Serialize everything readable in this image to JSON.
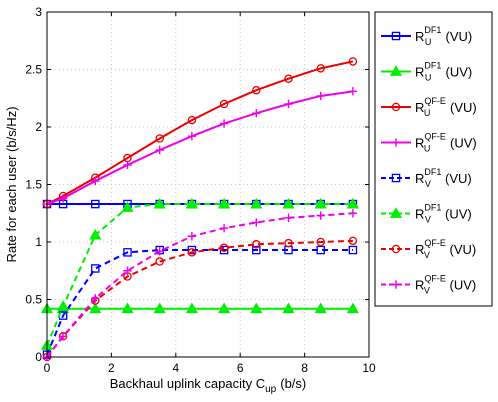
{
  "chart_data": {
    "type": "line",
    "xlabel": "Backhaul uplink capacity C",
    "xlabel_sub": "up",
    "xlabel_unit": "(b/s)",
    "ylabel": "Rate for each user (b/s/Hz)",
    "xlim": [
      0,
      10
    ],
    "ylim": [
      0,
      3
    ],
    "x_ticks": [
      "0",
      "2",
      "4",
      "6",
      "8",
      "10"
    ],
    "y_ticks": [
      "0",
      "0.5",
      "1",
      "1.5",
      "2",
      "2.5",
      "3"
    ],
    "grid": true,
    "legend_position": "right",
    "x": [
      0,
      0.5,
      1.5,
      2.5,
      3.5,
      4.5,
      5.5,
      6.5,
      7.5,
      8.5,
      9.5
    ],
    "series": [
      {
        "name": "R_U^DF1 (VU)",
        "label_base": "R",
        "label_sub": "U",
        "label_sup": "DF1",
        "label_tail": "(VU)",
        "color": "#0000ff",
        "dash": "solid",
        "marker": "square",
        "values": [
          1.33,
          1.33,
          1.33,
          1.33,
          1.33,
          1.33,
          1.33,
          1.33,
          1.33,
          1.33,
          1.33
        ]
      },
      {
        "name": "R_U^DF1 (UV)",
        "label_base": "R",
        "label_sub": "U",
        "label_sup": "DF1",
        "label_tail": "(UV)",
        "color": "#00ee00",
        "dash": "solid",
        "marker": "triangle",
        "values": [
          0.42,
          0.42,
          0.42,
          0.42,
          0.42,
          0.42,
          0.42,
          0.42,
          0.42,
          0.42,
          0.42
        ]
      },
      {
        "name": "R_U^QF-E (VU)",
        "label_base": "R",
        "label_sub": "U",
        "label_sup": "QF-E",
        "label_tail": "(VU)",
        "color": "#ee0000",
        "dash": "solid",
        "marker": "circle",
        "values": [
          1.33,
          1.4,
          1.56,
          1.73,
          1.9,
          2.06,
          2.2,
          2.32,
          2.42,
          2.51,
          2.57
        ]
      },
      {
        "name": "R_U^QF-E (UV)",
        "label_base": "R",
        "label_sub": "U",
        "label_sup": "QF-E",
        "label_tail": "(UV)",
        "color": "#ee00ee",
        "dash": "solid",
        "marker": "plus",
        "values": [
          1.33,
          1.38,
          1.53,
          1.67,
          1.8,
          1.92,
          2.03,
          2.12,
          2.2,
          2.27,
          2.31
        ]
      },
      {
        "name": "R_V^DF1 (VU)",
        "label_base": "R",
        "label_sub": "V",
        "label_sup": "DF1",
        "label_tail": "(VU)",
        "color": "#0000ff",
        "dash": "dashed",
        "marker": "square",
        "values": [
          0.02,
          0.36,
          0.77,
          0.91,
          0.93,
          0.93,
          0.93,
          0.93,
          0.93,
          0.93,
          0.93
        ]
      },
      {
        "name": "R_V^DF1 (UV)",
        "label_base": "R",
        "label_sub": "V",
        "label_sup": "DF1",
        "label_tail": "(UV)",
        "color": "#00ee00",
        "dash": "dashed",
        "marker": "triangle",
        "values": [
          0.1,
          0.44,
          1.06,
          1.3,
          1.33,
          1.33,
          1.33,
          1.33,
          1.33,
          1.33,
          1.33
        ]
      },
      {
        "name": "R_V^QF-E (VU)",
        "label_base": "R",
        "label_sub": "V",
        "label_sup": "QF-E",
        "label_tail": "(VU)",
        "color": "#ee0000",
        "dash": "dashed",
        "marker": "circle",
        "values": [
          0.0,
          0.18,
          0.49,
          0.7,
          0.83,
          0.91,
          0.95,
          0.98,
          0.99,
          1.0,
          1.01
        ]
      },
      {
        "name": "R_V^QF-E (UV)",
        "label_base": "R",
        "label_sub": "V",
        "label_sup": "QF-E",
        "label_tail": "(UV)",
        "color": "#ee00ee",
        "dash": "dashed",
        "marker": "plus",
        "values": [
          0.0,
          0.18,
          0.51,
          0.75,
          0.92,
          1.05,
          1.12,
          1.17,
          1.21,
          1.23,
          1.25
        ]
      }
    ]
  }
}
